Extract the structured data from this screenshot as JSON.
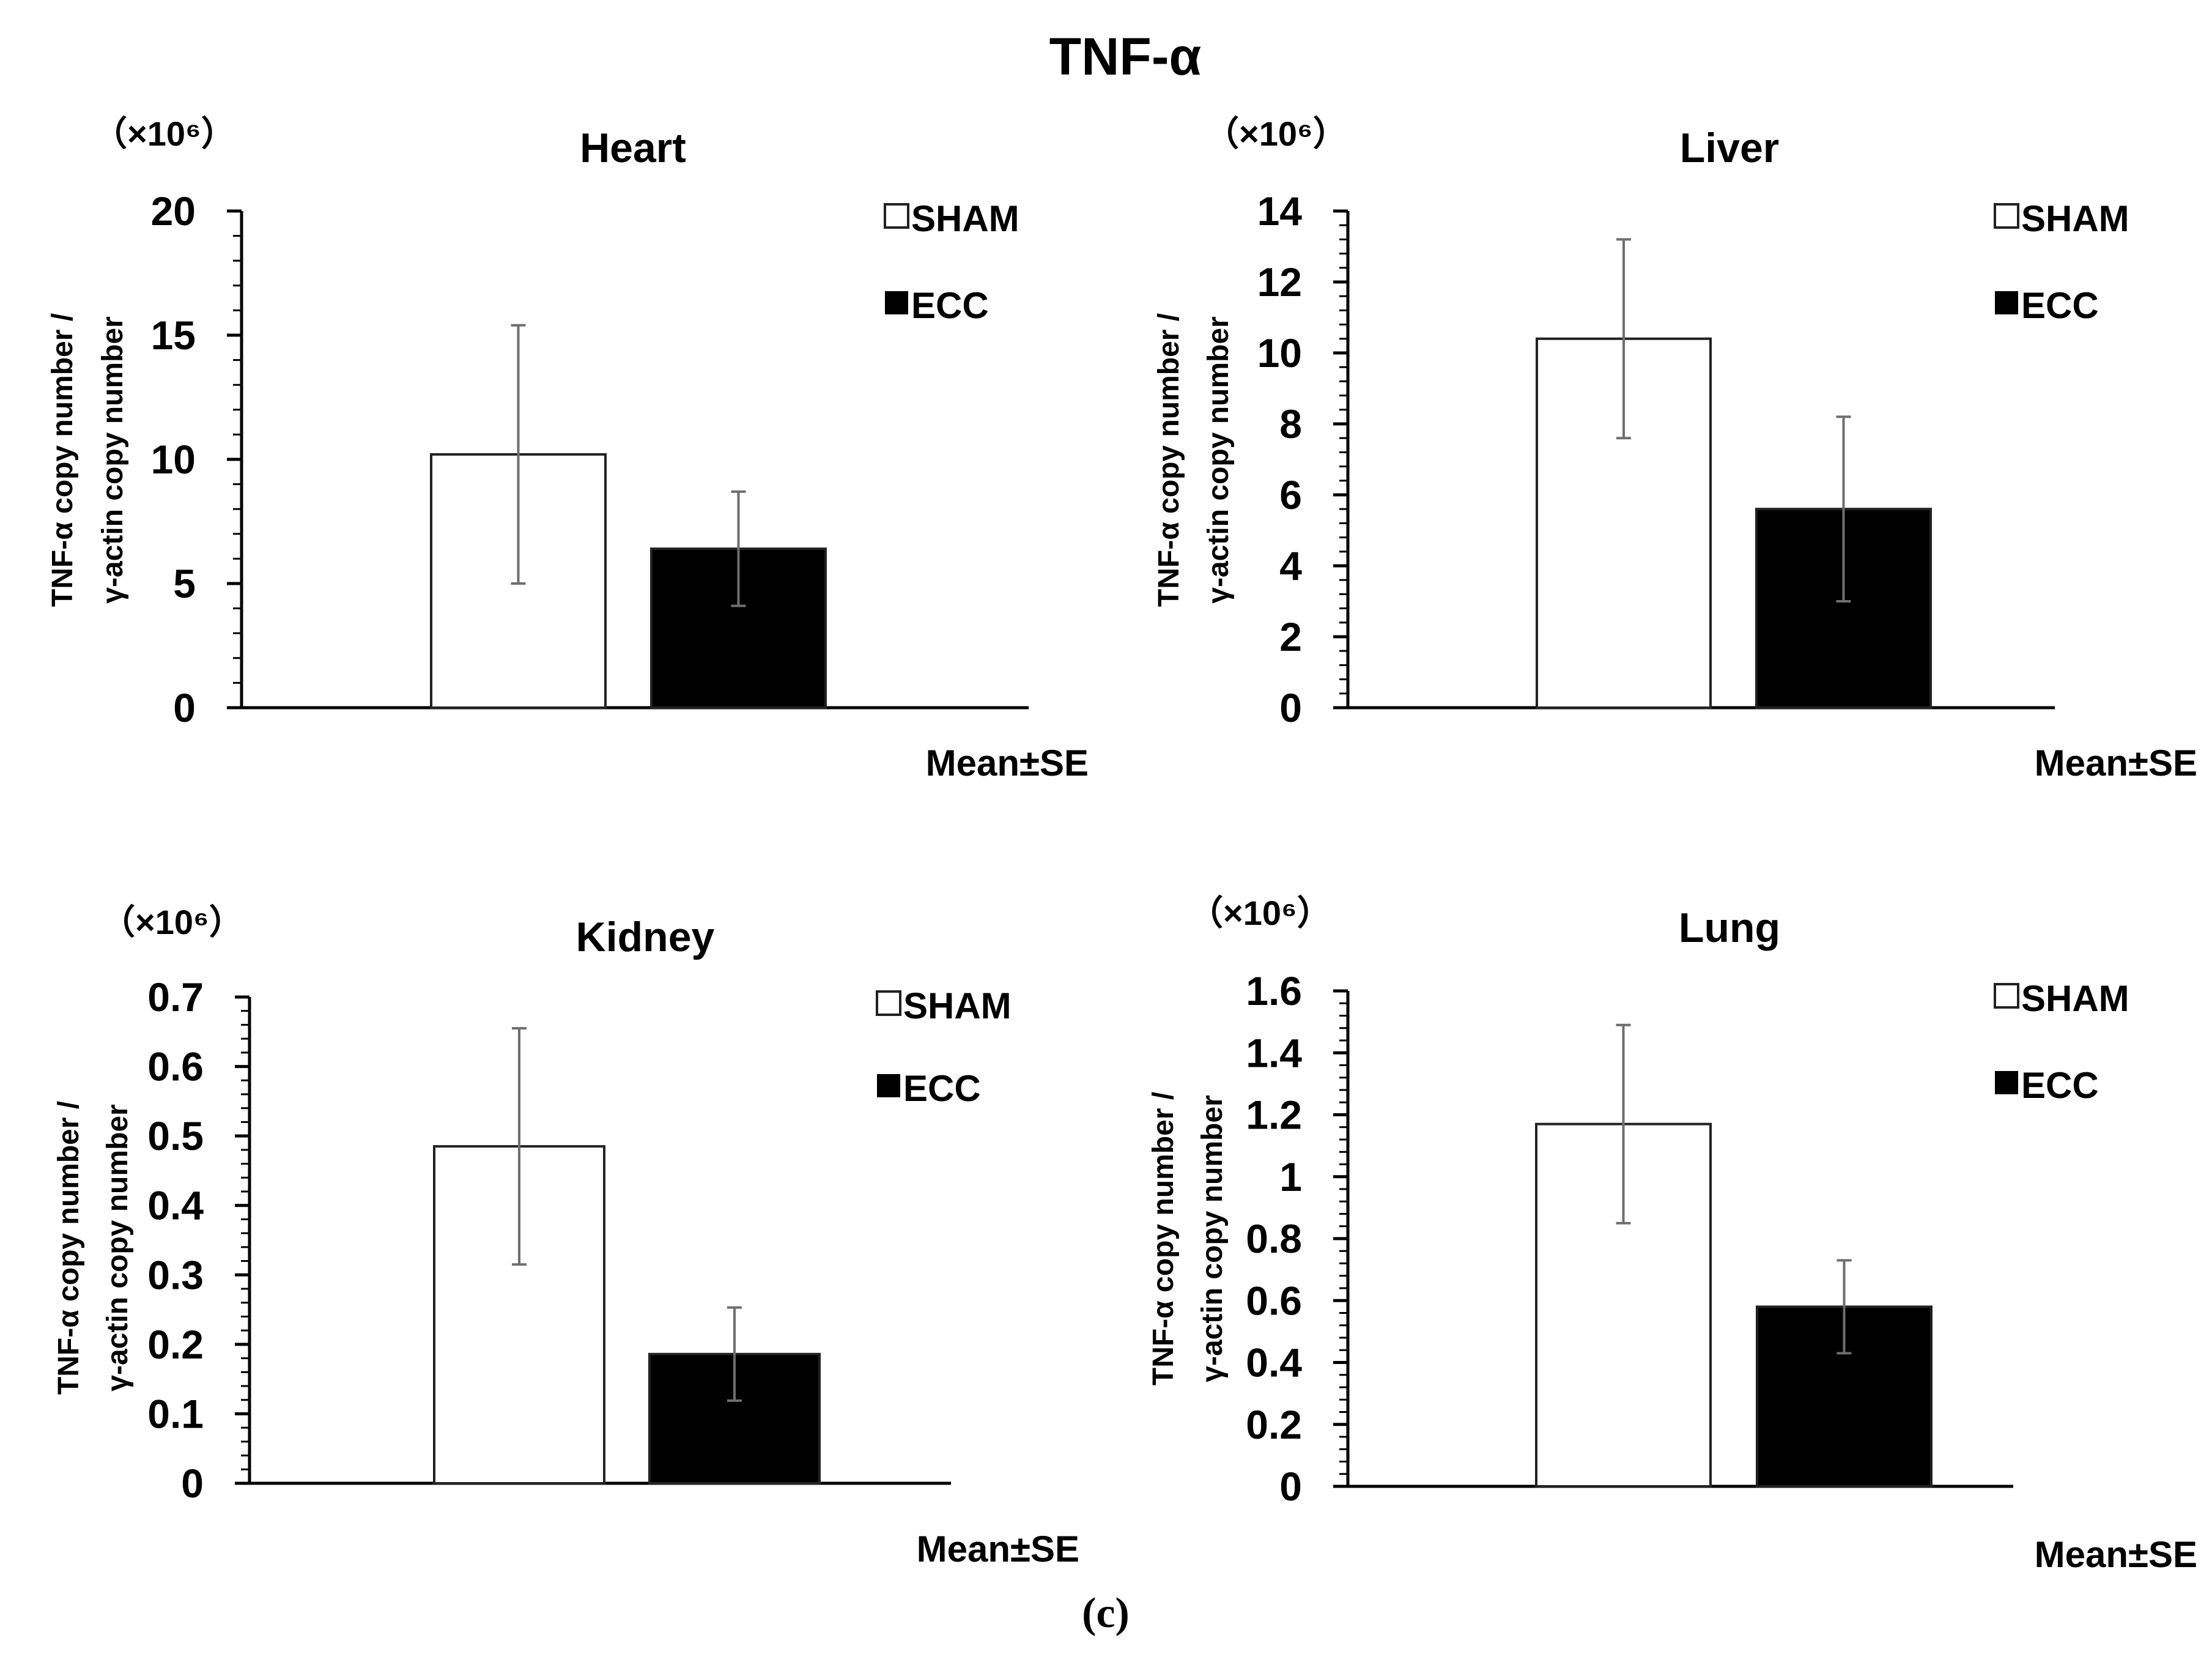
{
  "figure": {
    "title": "TNF-α",
    "sublabel": "(c)"
  },
  "colors": {
    "sham_fill": "#ffffff",
    "ecc_fill": "#000000",
    "axis": "#000000",
    "error_bar": "#6e6e6e"
  },
  "chart_data": [
    {
      "type": "bar",
      "title": "Heart",
      "scale_label": "（×10⁶）",
      "ylabel_line1": "TNF-α copy number /",
      "ylabel_line2": "γ-actin copy number",
      "ylim": [
        0,
        20
      ],
      "yticks": [
        "0",
        "5",
        "10",
        "15",
        "20"
      ],
      "tick_values": [
        0,
        5,
        10,
        15,
        20
      ],
      "minor_step": 1,
      "note": "Mean±SE",
      "series": [
        {
          "name": "SHAM",
          "value": 10.2,
          "error": 5.2
        },
        {
          "name": "ECC",
          "value": 6.4,
          "error": 2.3
        }
      ]
    },
    {
      "type": "bar",
      "title": "Liver",
      "scale_label": "（×10⁶）",
      "ylabel_line1": "TNF-α copy number /",
      "ylabel_line2": "γ-actin copy number",
      "ylim": [
        0,
        14
      ],
      "yticks": [
        "0",
        "2",
        "4",
        "6",
        "8",
        "10",
        "12",
        "14"
      ],
      "tick_values": [
        0,
        2,
        4,
        6,
        8,
        10,
        12,
        14
      ],
      "minor_step": 0.4,
      "note": "Mean±SE",
      "series": [
        {
          "name": "SHAM",
          "value": 10.4,
          "error": 2.8
        },
        {
          "name": "ECC",
          "value": 5.6,
          "error": 2.6
        }
      ]
    },
    {
      "type": "bar",
      "title": "Kidney",
      "scale_label": "（×10⁶）",
      "ylabel_line1": "TNF-α copy number /",
      "ylabel_line2": "γ-actin copy number",
      "ylim": [
        0,
        0.7
      ],
      "yticks": [
        "0",
        "0.1",
        "0.2",
        "0.3",
        "0.4",
        "0.5",
        "0.6",
        "0.7"
      ],
      "tick_values": [
        0,
        0.1,
        0.2,
        0.3,
        0.4,
        0.5,
        0.6,
        0.7
      ],
      "minor_step": 0.02,
      "note": "Mean±SE",
      "series": [
        {
          "name": "SHAM",
          "value": 0.485,
          "error": 0.17
        },
        {
          "name": "ECC",
          "value": 0.186,
          "error": 0.067
        }
      ]
    },
    {
      "type": "bar",
      "title": "Lung",
      "scale_label": "（×10⁶）",
      "ylabel_line1": "TNF-α copy number /",
      "ylabel_line2": "γ-actin copy number",
      "ylim": [
        0,
        1.6
      ],
      "yticks": [
        "0",
        "0.2",
        "0.4",
        "0.6",
        "0.8",
        "1",
        "1.2",
        "1.4",
        "1.6"
      ],
      "tick_values": [
        0,
        0.2,
        0.4,
        0.6,
        0.8,
        1,
        1.2,
        1.4,
        1.6
      ],
      "minor_step": 0.04,
      "note": "Mean±SE",
      "series": [
        {
          "name": "SHAM",
          "value": 1.17,
          "error": 0.32
        },
        {
          "name": "ECC",
          "value": 0.58,
          "error": 0.15
        }
      ]
    }
  ]
}
